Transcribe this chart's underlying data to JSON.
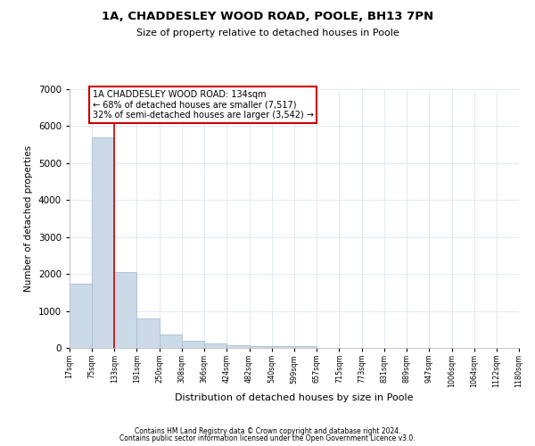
{
  "title1": "1A, CHADDESLEY WOOD ROAD, POOLE, BH13 7PN",
  "title2": "Size of property relative to detached houses in Poole",
  "xlabel": "Distribution of detached houses by size in Poole",
  "ylabel": "Number of detached properties",
  "bar_color": "#ccd9e8",
  "bar_edge_color": "#a8bfd4",
  "vline_color": "#cc0000",
  "annotation_text": "1A CHADDESLEY WOOD ROAD: 134sqm\n← 68% of detached houses are smaller (7,517)\n32% of semi-detached houses are larger (3,542) →",
  "bin_edges": [
    17,
    75,
    133,
    191,
    250,
    308,
    366,
    424,
    482,
    540,
    599,
    657,
    715,
    773,
    831,
    889,
    947,
    1006,
    1064,
    1122,
    1180
  ],
  "bin_labels": [
    "17sqm",
    "75sqm",
    "133sqm",
    "191sqm",
    "250sqm",
    "308sqm",
    "366sqm",
    "424sqm",
    "482sqm",
    "540sqm",
    "599sqm",
    "657sqm",
    "715sqm",
    "773sqm",
    "831sqm",
    "889sqm",
    "947sqm",
    "1006sqm",
    "1064sqm",
    "1122sqm",
    "1180sqm"
  ],
  "counts": [
    1750,
    5700,
    2050,
    800,
    370,
    200,
    110,
    70,
    55,
    45,
    60,
    0,
    0,
    0,
    0,
    0,
    0,
    0,
    0,
    0
  ],
  "ylim": [
    0,
    7000
  ],
  "yticks": [
    0,
    1000,
    2000,
    3000,
    4000,
    5000,
    6000,
    7000
  ],
  "background_color": "#ffffff",
  "grid_color": "#dce6f1",
  "footer1": "Contains HM Land Registry data © Crown copyright and database right 2024.",
  "footer2": "Contains public sector information licensed under the Open Government Licence v3.0."
}
